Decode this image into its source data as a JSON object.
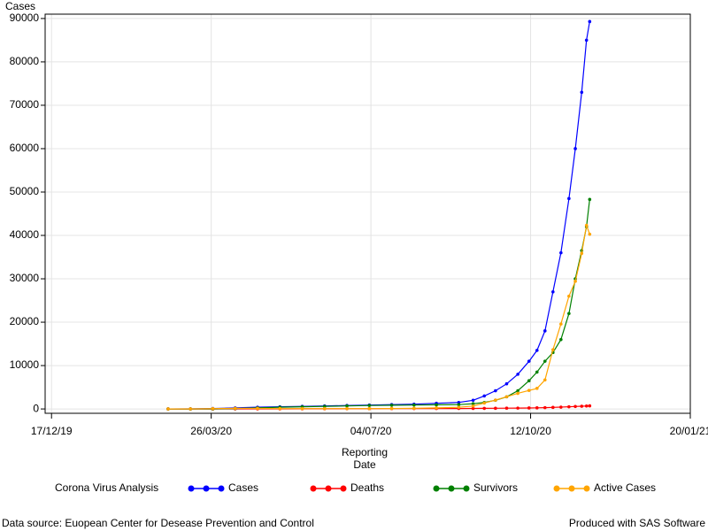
{
  "chart_data": {
    "type": "line",
    "ylabel": "Cases",
    "xlabel_lines": [
      "Reporting",
      "Date"
    ],
    "legend_title": "Corona Virus Analysis",
    "footnote_left": "Data source: Euopean Center for Desease Prevention and Control",
    "footnote_right": "Produced with SAS Software",
    "grid": true,
    "legend": "bottom",
    "xlim": [
      "2019-12-13",
      "2021-01-20"
    ],
    "xticks": [
      {
        "value": "2019-12-17",
        "label": "17/12/19"
      },
      {
        "value": "2020-03-26",
        "label": "26/03/20"
      },
      {
        "value": "2020-07-04",
        "label": "04/07/20"
      },
      {
        "value": "2020-10-12",
        "label": "12/10/20"
      },
      {
        "value": "2021-01-20",
        "label": "20/01/21"
      }
    ],
    "ylim": [
      -1000,
      91000
    ],
    "yticks": [
      0,
      10000,
      20000,
      30000,
      40000,
      50000,
      60000,
      70000,
      80000,
      90000
    ],
    "x": [
      "2020-02-28",
      "2020-03-13",
      "2020-03-27",
      "2020-04-10",
      "2020-04-24",
      "2020-05-08",
      "2020-05-22",
      "2020-06-05",
      "2020-06-19",
      "2020-07-03",
      "2020-07-17",
      "2020-07-31",
      "2020-08-14",
      "2020-08-28",
      "2020-09-06",
      "2020-09-13",
      "2020-09-20",
      "2020-09-27",
      "2020-10-04",
      "2020-10-11",
      "2020-10-16",
      "2020-10-21",
      "2020-10-26",
      "2020-10-31",
      "2020-11-05",
      "2020-11-09",
      "2020-11-13",
      "2020-11-16",
      "2020-11-18"
    ],
    "series": [
      {
        "name": "Cases",
        "color": "#0000ff",
        "values": [
          0,
          20,
          100,
          250,
          400,
          500,
          600,
          700,
          800,
          900,
          1000,
          1100,
          1300,
          1500,
          2000,
          3000,
          4200,
          5800,
          8000,
          11000,
          13500,
          18000,
          27000,
          36000,
          48500,
          60000,
          73000,
          85000,
          89300
        ]
      },
      {
        "name": "Deaths",
        "color": "#ff0000",
        "values": [
          0,
          0,
          5,
          10,
          20,
          30,
          40,
          50,
          60,
          70,
          80,
          90,
          100,
          110,
          120,
          140,
          160,
          180,
          200,
          230,
          260,
          300,
          360,
          420,
          500,
          570,
          630,
          680,
          720
        ]
      },
      {
        "name": "Survivors",
        "color": "#008000",
        "values": [
          0,
          0,
          20,
          100,
          250,
          400,
          500,
          600,
          700,
          800,
          850,
          900,
          950,
          1000,
          1200,
          1500,
          2000,
          2800,
          4200,
          6500,
          8500,
          11000,
          13000,
          16000,
          22000,
          30000,
          36500,
          42000,
          48300
        ]
      },
      {
        "name": "Active Cases",
        "color": "#ffa500",
        "values": [
          0,
          20,
          80,
          140,
          130,
          80,
          80,
          80,
          80,
          80,
          110,
          160,
          250,
          390,
          680,
          1360,
          2040,
          2820,
          3600,
          4270,
          4740,
          6700,
          13640,
          19580,
          26000,
          29430,
          35870,
          42320,
          40280
        ]
      }
    ]
  }
}
